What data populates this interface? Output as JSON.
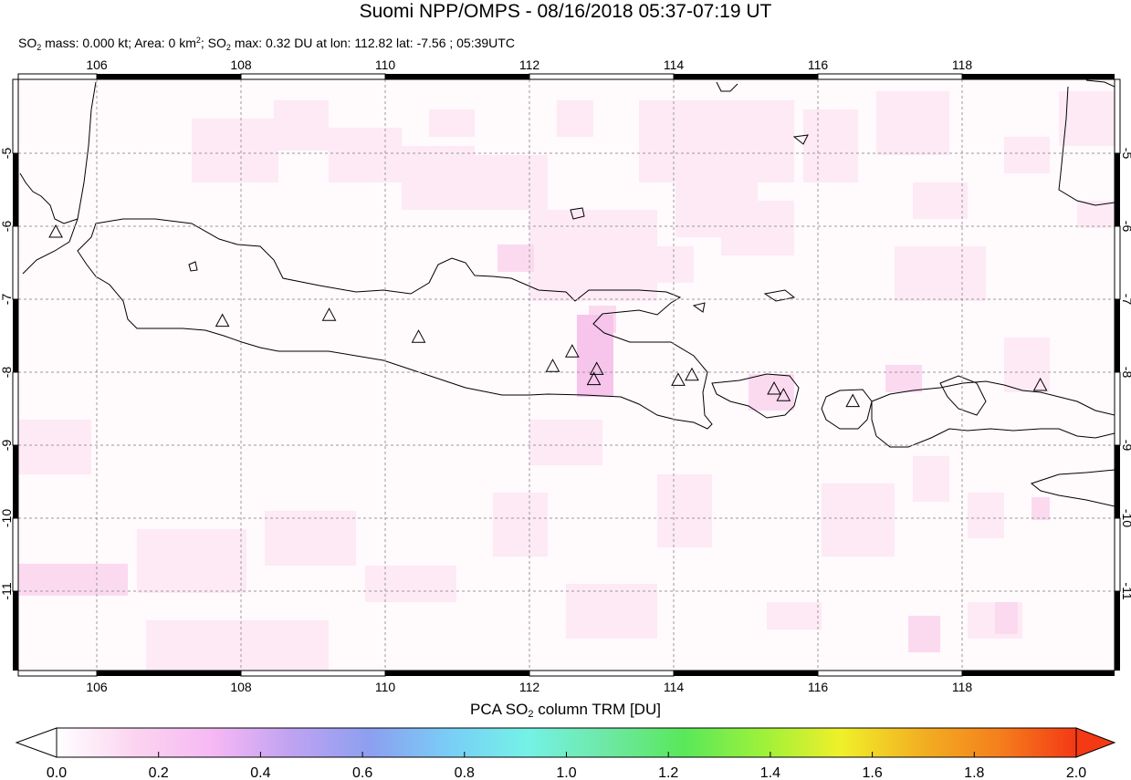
{
  "title": "Suomi NPP/OMPS - 08/16/2018 05:37-07:19 UT",
  "subtitle": {
    "mass_prefix": "SO",
    "mass_sub": "2",
    "mass_text": " mass: 0.000 kt; Area: 0 km",
    "area_sup": "2",
    "max_prefix": "; SO",
    "max_sub": "2",
    "max_text": " max: 0.32 DU at lon: 112.82 lat: -7.56 ; 05:39UTC"
  },
  "map": {
    "lon_ticks": [
      "106",
      "108",
      "110",
      "112",
      "114",
      "116",
      "118"
    ],
    "lat_ticks": [
      "-5",
      "-6",
      "-7",
      "-8",
      "-9",
      "-10",
      "-11"
    ],
    "lon_range": [
      104.9,
      120.1
    ],
    "lat_range": [
      -12.1,
      -4.0
    ],
    "volcanoes": [
      [
        105.42,
        -6.1
      ],
      [
        107.73,
        -7.32
      ],
      [
        109.21,
        -7.24
      ],
      [
        110.45,
        -7.54
      ],
      [
        112.31,
        -7.94
      ],
      [
        112.58,
        -7.74
      ],
      [
        112.92,
        -7.98
      ],
      [
        112.88,
        -8.12
      ],
      [
        114.05,
        -8.13
      ],
      [
        114.24,
        -8.06
      ],
      [
        115.38,
        -8.25
      ],
      [
        115.51,
        -8.34
      ],
      [
        116.47,
        -8.42
      ],
      [
        119.07,
        -8.2
      ]
    ]
  },
  "colorbar": {
    "label_prefix": "PCA SO",
    "label_sub": "2",
    "label_suffix": " column TRM [DU]",
    "ticks": [
      "0.0",
      "0.2",
      "0.4",
      "0.6",
      "0.8",
      "1.0",
      "1.2",
      "1.4",
      "1.6",
      "1.8",
      "2.0"
    ],
    "range": [
      0.0,
      2.0
    ],
    "stops": [
      "#ffffff",
      "#fbd4f0",
      "#f6b8f4",
      "#bfa2f2",
      "#8c9ff0",
      "#79cdf7",
      "#74f2e6",
      "#6ee8a6",
      "#59e85a",
      "#9df13a",
      "#f0f02a",
      "#f2b122",
      "#f5801d",
      "#f43915"
    ]
  }
}
